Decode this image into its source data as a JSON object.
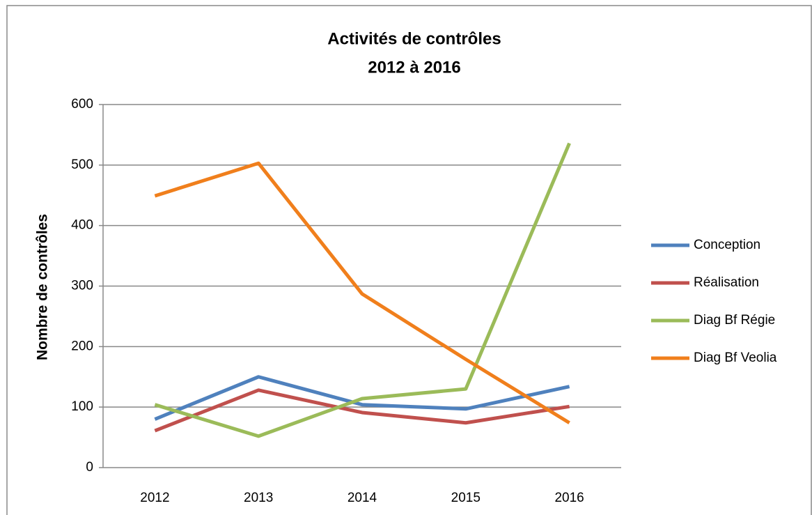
{
  "chart_data": {
    "type": "line",
    "title": "Activités de contrôles",
    "subtitle": "2012 à 2016",
    "y_label": "Nombre  de contrôles",
    "categories": [
      "2012",
      "2013",
      "2014",
      "2015",
      "2016"
    ],
    "series": [
      {
        "name": "Conception",
        "color": "#4f81bd",
        "values": [
          80,
          150,
          104,
          97,
          134
        ]
      },
      {
        "name": "Réalisation",
        "color": "#c0504d",
        "values": [
          61,
          128,
          91,
          74,
          101
        ]
      },
      {
        "name": "Diag Bf Régie",
        "color": "#9bbb59",
        "values": [
          104,
          52,
          114,
          130,
          536
        ]
      },
      {
        "name": "Diag Bf Veolia",
        "color": "#f07f1c",
        "values": [
          449,
          503,
          287,
          179,
          74
        ]
      }
    ],
    "ylim": [
      0,
      600
    ],
    "yticks": [
      0,
      100,
      200,
      300,
      400,
      500,
      600
    ],
    "grid": true,
    "legend": "right"
  }
}
